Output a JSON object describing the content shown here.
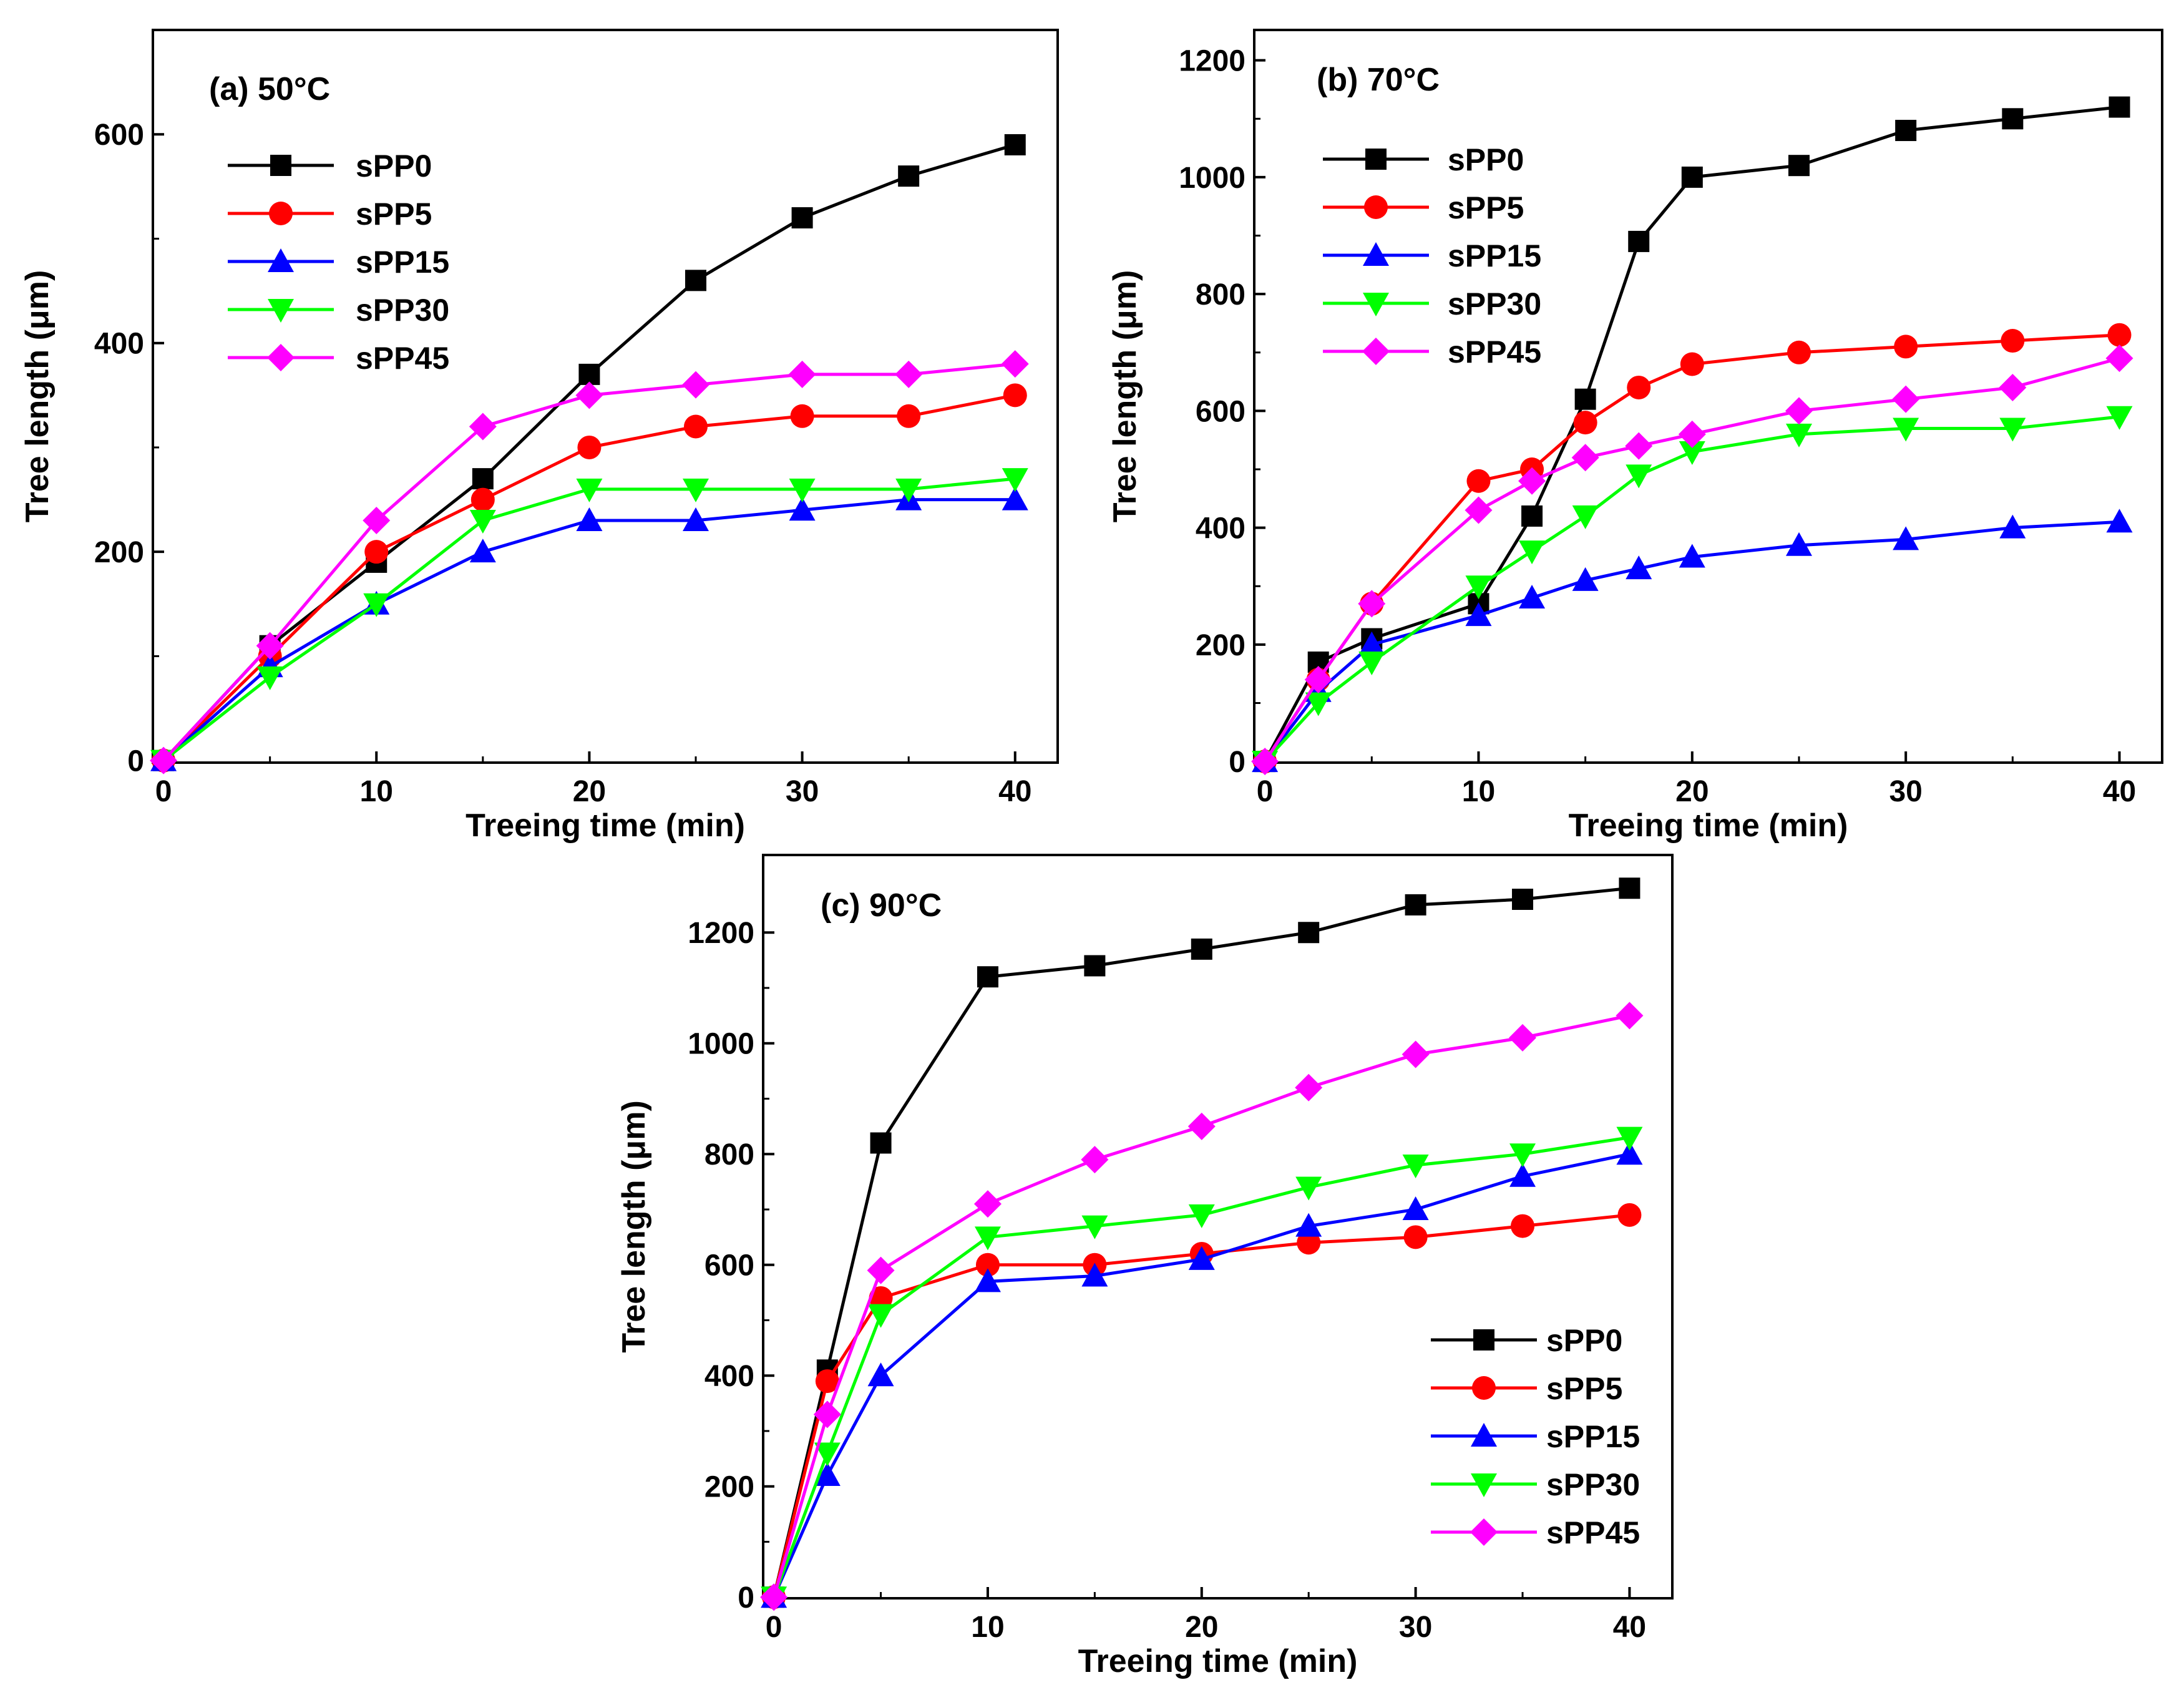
{
  "chart_data": [
    {
      "type": "line",
      "title": "(a) 50°C",
      "xlabel": "Treeing time (min)",
      "ylabel": "Tree length (μm)",
      "xlim": [
        -0.5,
        42
      ],
      "ylim": [
        -2,
        600
      ],
      "xticks": [
        0,
        10,
        20,
        30,
        40
      ],
      "yticks": [
        0,
        200,
        400,
        600
      ],
      "legend_position": "top-left",
      "grid": false,
      "series": [
        {
          "name": "sPP0",
          "color": "#000000",
          "marker": "square",
          "x": [
            0,
            5,
            10,
            15,
            20,
            25,
            30,
            35,
            40
          ],
          "y": [
            0,
            110,
            190,
            270,
            370,
            460,
            520,
            560,
            590
          ]
        },
        {
          "name": "sPP5",
          "color": "#ff0000",
          "marker": "circle",
          "x": [
            0,
            5,
            10,
            15,
            20,
            25,
            30,
            35,
            40
          ],
          "y": [
            0,
            100,
            200,
            250,
            300,
            320,
            330,
            330,
            350
          ]
        },
        {
          "name": "sPP15",
          "color": "#0000ff",
          "marker": "triangle-up",
          "x": [
            0,
            5,
            10,
            15,
            20,
            25,
            30,
            35,
            40
          ],
          "y": [
            0,
            90,
            150,
            200,
            230,
            230,
            240,
            250,
            250
          ]
        },
        {
          "name": "sPP30",
          "color": "#00ff00",
          "marker": "triangle-down",
          "x": [
            0,
            5,
            10,
            15,
            20,
            25,
            30,
            35,
            40
          ],
          "y": [
            0,
            80,
            150,
            230,
            260,
            260,
            260,
            260,
            270
          ]
        },
        {
          "name": "sPP45",
          "color": "#ff00ff",
          "marker": "diamond",
          "x": [
            0,
            5,
            10,
            15,
            20,
            25,
            30,
            35,
            40
          ],
          "y": [
            0,
            110,
            230,
            320,
            350,
            360,
            370,
            370,
            380
          ]
        }
      ]
    },
    {
      "type": "line",
      "title": "(b) 70°C",
      "xlabel": "Treeing time (min)",
      "ylabel": "Tree length (μm)",
      "xlim": [
        -0.5,
        42
      ],
      "ylim": [
        -2,
        1200
      ],
      "xticks": [
        0,
        10,
        20,
        30,
        40
      ],
      "yticks": [
        0,
        200,
        400,
        600,
        800,
        1000,
        1200
      ],
      "legend_position": "top-left",
      "grid": false,
      "series": [
        {
          "name": "sPP0",
          "color": "#000000",
          "marker": "square",
          "x": [
            0,
            2.5,
            5,
            10,
            12.5,
            15,
            17.5,
            20,
            25,
            30,
            35,
            40
          ],
          "y": [
            0,
            170,
            210,
            270,
            420,
            620,
            890,
            1000,
            1020,
            1080,
            1100,
            1120
          ]
        },
        {
          "name": "sPP5",
          "color": "#ff0000",
          "marker": "circle",
          "x": [
            0,
            2.5,
            5,
            10,
            12.5,
            15,
            17.5,
            20,
            25,
            30,
            35,
            40
          ],
          "y": [
            0,
            140,
            270,
            480,
            500,
            580,
            640,
            680,
            700,
            710,
            720,
            730
          ]
        },
        {
          "name": "sPP15",
          "color": "#0000ff",
          "marker": "triangle-up",
          "x": [
            0,
            2.5,
            5,
            10,
            12.5,
            15,
            17.5,
            20,
            25,
            30,
            35,
            40
          ],
          "y": [
            0,
            120,
            200,
            250,
            280,
            310,
            330,
            350,
            370,
            380,
            400,
            410
          ]
        },
        {
          "name": "sPP30",
          "color": "#00ff00",
          "marker": "triangle-down",
          "x": [
            0,
            2.5,
            5,
            10,
            12.5,
            15,
            17.5,
            20,
            25,
            30,
            35,
            40
          ],
          "y": [
            0,
            100,
            170,
            300,
            360,
            420,
            490,
            530,
            560,
            570,
            570,
            590
          ]
        },
        {
          "name": "sPP45",
          "color": "#ff00ff",
          "marker": "diamond",
          "x": [
            0,
            2.5,
            5,
            10,
            12.5,
            15,
            17.5,
            20,
            25,
            30,
            35,
            40
          ],
          "y": [
            0,
            140,
            270,
            430,
            480,
            520,
            540,
            560,
            600,
            620,
            640,
            690
          ]
        }
      ]
    },
    {
      "type": "line",
      "title": "(c) 90°C",
      "xlabel": "Treeing time (min)",
      "ylabel": "Tree length (μm)",
      "xlim": [
        -0.5,
        42
      ],
      "ylim": [
        -2,
        1200
      ],
      "xticks": [
        0,
        10,
        20,
        30,
        40
      ],
      "yticks": [
        0,
        200,
        400,
        600,
        800,
        1000,
        1200
      ],
      "legend_position": "bottom-right",
      "grid": false,
      "series": [
        {
          "name": "sPP0",
          "color": "#000000",
          "marker": "square",
          "x": [
            0,
            2.5,
            5,
            10,
            15,
            20,
            25,
            30,
            35,
            40
          ],
          "y": [
            0,
            410,
            820,
            1120,
            1140,
            1170,
            1200,
            1250,
            1260,
            1280
          ]
        },
        {
          "name": "sPP5",
          "color": "#ff0000",
          "marker": "circle",
          "x": [
            0,
            2.5,
            5,
            10,
            15,
            20,
            25,
            30,
            35,
            40
          ],
          "y": [
            0,
            390,
            540,
            600,
            600,
            620,
            640,
            650,
            670,
            690
          ]
        },
        {
          "name": "sPP15",
          "color": "#0000ff",
          "marker": "triangle-up",
          "x": [
            0,
            2.5,
            5,
            10,
            15,
            20,
            25,
            30,
            35,
            40
          ],
          "y": [
            0,
            220,
            400,
            570,
            580,
            610,
            670,
            700,
            760,
            800
          ]
        },
        {
          "name": "sPP30",
          "color": "#00ff00",
          "marker": "triangle-down",
          "x": [
            0,
            2.5,
            5,
            10,
            15,
            20,
            25,
            30,
            35,
            40
          ],
          "y": [
            0,
            260,
            510,
            650,
            670,
            690,
            740,
            780,
            800,
            830
          ]
        },
        {
          "name": "sPP45",
          "color": "#ff00ff",
          "marker": "diamond",
          "x": [
            0,
            2.5,
            5,
            10,
            15,
            20,
            25,
            30,
            35,
            40
          ],
          "y": [
            0,
            330,
            590,
            710,
            790,
            850,
            920,
            980,
            1010,
            1050
          ]
        }
      ]
    }
  ]
}
